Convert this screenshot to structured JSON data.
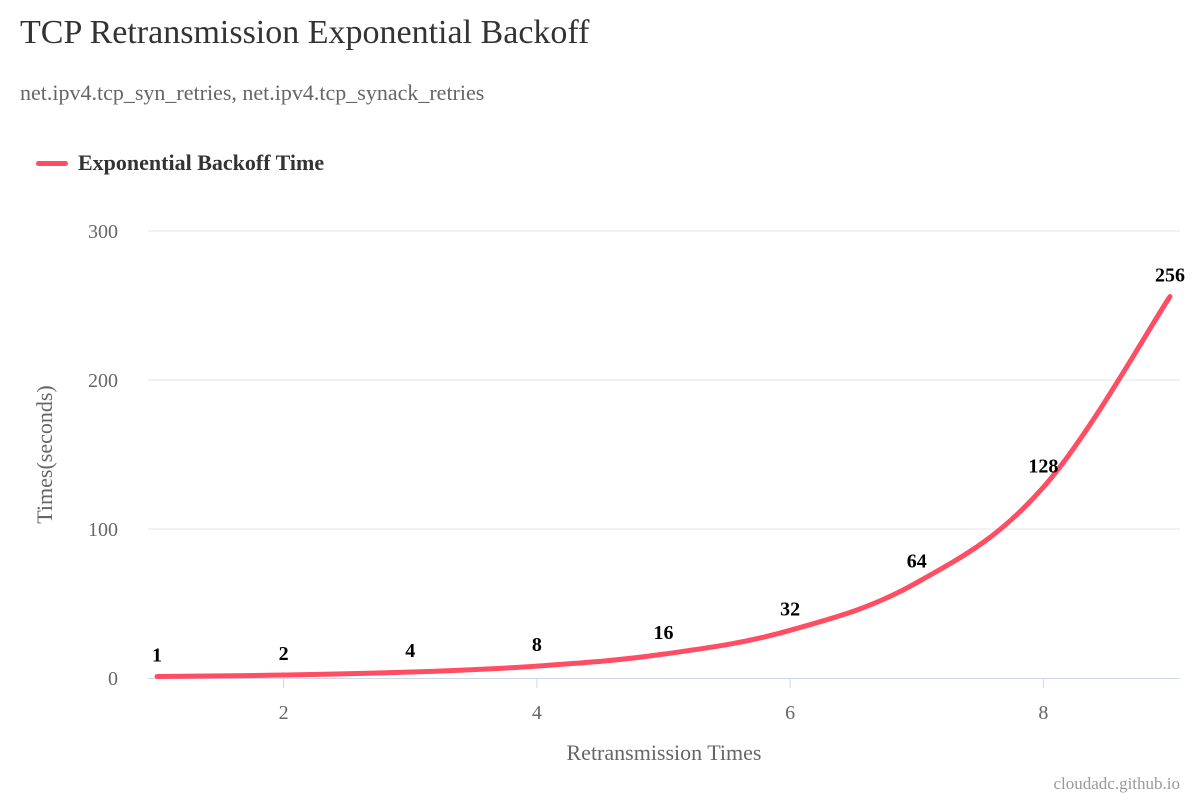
{
  "title": "TCP Retransmission Exponential Backoff",
  "subtitle": "net.ipv4.tcp_syn_retries, net.ipv4.tcp_synack_retries",
  "credit": "cloudadc.github.io",
  "colors": {
    "series": "#ff4d63",
    "grid": "#e6e6e6",
    "axis": "#ccd6eb"
  },
  "chart_data": {
    "type": "line",
    "title": "TCP Retransmission Exponential Backoff",
    "subtitle": "net.ipv4.tcp_syn_retries, net.ipv4.tcp_synack_retries",
    "xlabel": "Retransmission Times",
    "ylabel": "Times(seconds)",
    "xlim": [
      1,
      9
    ],
    "ylim": [
      0,
      300
    ],
    "x_ticks": [
      2,
      4,
      6,
      8
    ],
    "y_ticks": [
      0,
      100,
      200,
      300
    ],
    "grid": true,
    "legend": "top-left",
    "series": [
      {
        "name": "Exponential Backoff Time",
        "x": [
          1,
          2,
          3,
          4,
          5,
          6,
          7,
          8,
          9
        ],
        "y": [
          1,
          2,
          4,
          8,
          16,
          32,
          64,
          128,
          256
        ],
        "labels": [
          "1",
          "2",
          "4",
          "8",
          "16",
          "32",
          "64",
          "128",
          "256"
        ]
      }
    ]
  }
}
